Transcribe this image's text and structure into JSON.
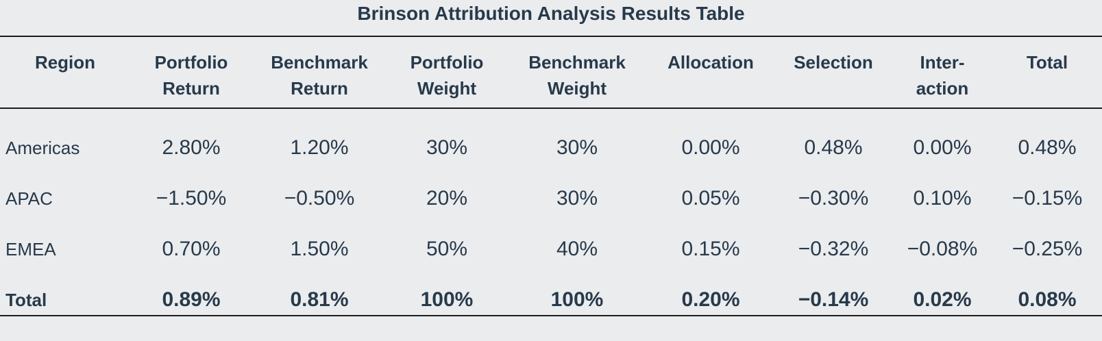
{
  "title": "Brinson Attribution Analysis Results Table",
  "columns": [
    [
      "Region"
    ],
    [
      "Portfolio",
      "Return"
    ],
    [
      "Benchmark",
      "Return"
    ],
    [
      "Portfolio",
      "Weight"
    ],
    [
      "Benchmark",
      "Weight"
    ],
    [
      "Allocation"
    ],
    [
      "Selection"
    ],
    [
      "Inter-",
      "action"
    ],
    [
      "Total"
    ]
  ],
  "rows": [
    [
      "Americas",
      "2.80%",
      "1.20%",
      "30%",
      "30%",
      "0.00%",
      "0.48%",
      "0.00%",
      "0.48%"
    ],
    [
      "APAC",
      "−1.50%",
      "−0.50%",
      "20%",
      "30%",
      "0.05%",
      "−0.30%",
      "0.10%",
      "−0.15%"
    ],
    [
      "EMEA",
      "0.70%",
      "1.50%",
      "50%",
      "40%",
      "0.15%",
      "−0.32%",
      "−0.08%",
      "−0.25%"
    ]
  ],
  "total_row": [
    "Total",
    "0.89%",
    "0.81%",
    "100%",
    "100%",
    "0.20%",
    "−0.14%",
    "0.02%",
    "0.08%"
  ]
}
